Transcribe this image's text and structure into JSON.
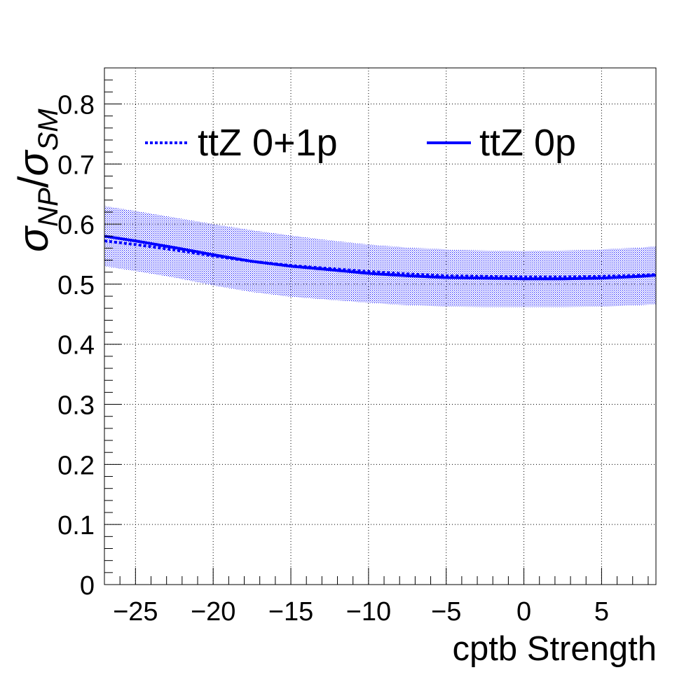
{
  "chart_data": {
    "type": "line",
    "title": "",
    "xlabel": "cptb Strength",
    "ylabel_main": "σ",
    "ylabel_main_sub": "NP",
    "ylabel_slash": "/",
    "ylabel_den": "σ",
    "ylabel_den_sub": "SM",
    "xlim": [
      -27,
      8.5
    ],
    "ylim": [
      0,
      0.86
    ],
    "xticks": [
      -25,
      -20,
      -15,
      -10,
      -5,
      0,
      5
    ],
    "xtick_labels": [
      "−25",
      "−20",
      "−15",
      "−10",
      "−5",
      "0",
      "5"
    ],
    "yticks": [
      0,
      0.1,
      0.2,
      0.3,
      0.4,
      0.5,
      0.6,
      0.7,
      0.8
    ],
    "ytick_labels": [
      "0",
      "0.1",
      "0.2",
      "0.3",
      "0.4",
      "0.5",
      "0.6",
      "0.7",
      "0.8"
    ],
    "grid": true,
    "legend_position": "top",
    "x": [
      -27,
      -25,
      -22.5,
      -20,
      -17.5,
      -15,
      -12.5,
      -10,
      -7.5,
      -5,
      -2.5,
      0,
      2.5,
      5,
      7.5,
      8.5
    ],
    "series": [
      {
        "name": "ttZ 0+1p",
        "style": "dotted",
        "color": "#0000ff",
        "values": [
          0.572,
          0.566,
          0.557,
          0.547,
          0.538,
          0.531,
          0.526,
          0.521,
          0.517,
          0.514,
          0.513,
          0.512,
          0.512,
          0.513,
          0.515,
          0.516
        ]
      },
      {
        "name": "ttZ 0p",
        "style": "solid",
        "color": "#0000ff",
        "values": [
          0.58,
          0.572,
          0.561,
          0.549,
          0.538,
          0.53,
          0.524,
          0.518,
          0.514,
          0.511,
          0.51,
          0.509,
          0.509,
          0.51,
          0.513,
          0.515
        ]
      }
    ],
    "band": {
      "color": "#0000ff",
      "upper": [
        0.63,
        0.622,
        0.611,
        0.6,
        0.59,
        0.581,
        0.573,
        0.566,
        0.561,
        0.558,
        0.556,
        0.555,
        0.556,
        0.558,
        0.561,
        0.563
      ],
      "lower": [
        0.53,
        0.522,
        0.511,
        0.498,
        0.487,
        0.479,
        0.474,
        0.469,
        0.465,
        0.463,
        0.462,
        0.462,
        0.462,
        0.463,
        0.465,
        0.467
      ]
    }
  }
}
